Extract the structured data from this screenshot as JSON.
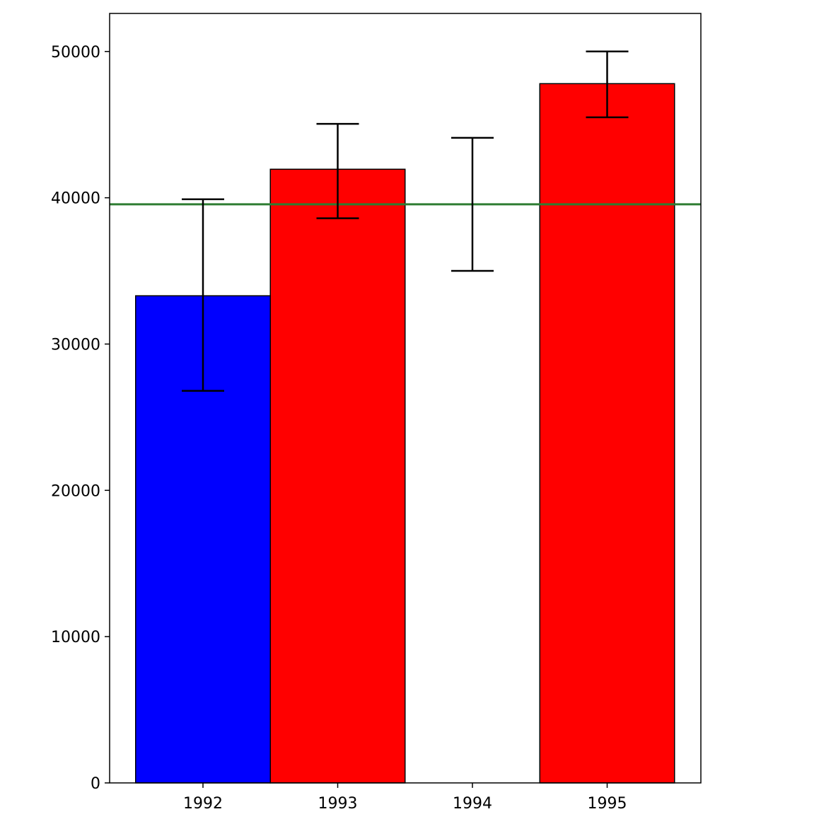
{
  "chart_data": {
    "type": "bar",
    "title": "",
    "xlabel": "",
    "ylabel": "",
    "categories": [
      "1992",
      "1993",
      "1994",
      "1995"
    ],
    "values": [
      33300,
      41950,
      0,
      47800
    ],
    "error_low": [
      26800,
      38600,
      35000,
      45500
    ],
    "error_high": [
      39900,
      45050,
      44100,
      50000
    ],
    "bar_colors": [
      "#0000ff",
      "#ff0000",
      "#ffffff",
      "#ff0000"
    ],
    "reference_line": {
      "y": 39550,
      "color": "#2e7d32"
    },
    "ylim": [
      0,
      52600
    ],
    "yticks": [
      0,
      10000,
      20000,
      30000,
      40000,
      50000
    ],
    "ytick_labels": [
      "0",
      "10000",
      "20000",
      "30000",
      "40000",
      "50000"
    ],
    "grid": false,
    "legend": "none"
  }
}
